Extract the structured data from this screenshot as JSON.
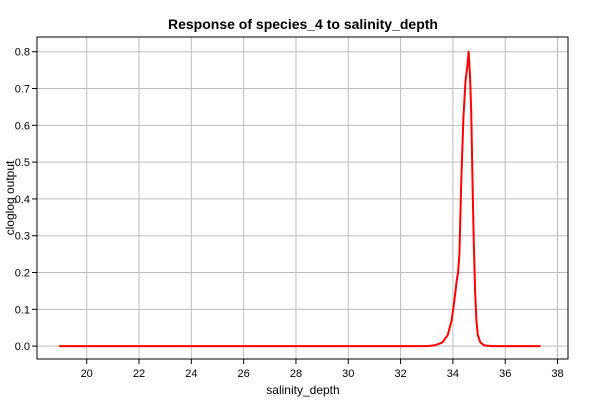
{
  "chart_data": {
    "type": "line",
    "title": "Response of species_4 to salinity_depth",
    "xlabel": "salinity_depth",
    "ylabel": "cloglog output",
    "xlim": [
      18.1,
      38.4
    ],
    "ylim": [
      -0.035,
      0.84
    ],
    "xticks": [
      20,
      22,
      24,
      26,
      28,
      30,
      32,
      34,
      36,
      38
    ],
    "yticks": [
      0.0,
      0.1,
      0.2,
      0.3,
      0.4,
      0.5,
      0.6,
      0.7,
      0.8
    ],
    "ytick_labels": [
      "0.0",
      "0.1",
      "0.2",
      "0.3",
      "0.4",
      "0.5",
      "0.6",
      "0.7",
      "0.8"
    ],
    "grid": true,
    "series": [
      {
        "color": "#ff0000",
        "x": [
          18.95,
          33.0,
          33.3,
          33.6,
          33.8,
          33.95,
          34.05,
          34.15,
          34.2,
          34.25,
          34.32,
          34.4,
          34.48,
          34.55,
          34.6,
          34.65,
          34.7,
          34.75,
          34.8,
          34.85,
          34.9,
          34.95,
          35.05,
          35.2,
          35.5,
          37.35
        ],
        "y": [
          0.0,
          0.0,
          0.002,
          0.01,
          0.03,
          0.07,
          0.12,
          0.18,
          0.2,
          0.25,
          0.45,
          0.62,
          0.72,
          0.76,
          0.8,
          0.74,
          0.64,
          0.45,
          0.28,
          0.15,
          0.07,
          0.03,
          0.01,
          0.002,
          0.0,
          0.0
        ]
      }
    ]
  }
}
